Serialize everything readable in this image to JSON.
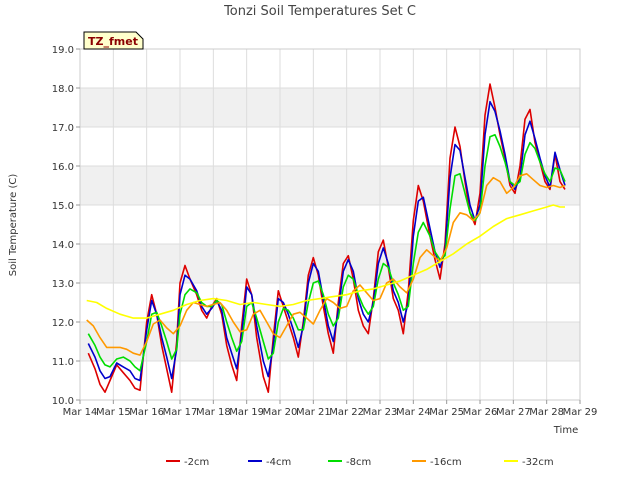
{
  "chart_data": {
    "type": "line",
    "title": "Tonzi Soil Temperatures Set C",
    "xlabel": "Time",
    "ylabel": "Soil Temperature (C)",
    "badge": "TZ_fmet",
    "xlim": [
      14,
      29
    ],
    "ylim": [
      10.0,
      19.0
    ],
    "x_ticks": [
      14,
      15,
      16,
      17,
      18,
      19,
      20,
      21,
      22,
      23,
      24,
      25,
      26,
      27,
      28,
      29
    ],
    "x_tick_labels": [
      "Mar 14",
      "Mar 15",
      "Mar 16",
      "Mar 17",
      "Mar 18",
      "Mar 19",
      "Mar 20",
      "Mar 21",
      "Mar 22",
      "Mar 23",
      "Mar 24",
      "Mar 25",
      "Mar 26",
      "Mar 27",
      "Mar 28",
      "Mar 29"
    ],
    "y_ticks": [
      10.0,
      11.0,
      12.0,
      13.0,
      14.0,
      15.0,
      16.0,
      17.0,
      18.0,
      19.0
    ],
    "y_tick_labels": [
      "10.0",
      "11.0",
      "12.0",
      "13.0",
      "14.0",
      "15.0",
      "16.0",
      "17.0",
      "18.0",
      "19.0"
    ],
    "legend_position": "bottom",
    "series": [
      {
        "name": "-2cm",
        "color": "#dd0000",
        "x": [
          14.25,
          14.45,
          14.6,
          14.75,
          14.9,
          15.1,
          15.3,
          15.5,
          15.65,
          15.8,
          16.0,
          16.15,
          16.3,
          16.45,
          16.6,
          16.75,
          16.9,
          17.0,
          17.15,
          17.3,
          17.5,
          17.65,
          17.8,
          17.95,
          18.1,
          18.25,
          18.4,
          18.55,
          18.7,
          18.85,
          19.0,
          19.15,
          19.3,
          19.5,
          19.65,
          19.8,
          19.95,
          20.1,
          20.25,
          20.4,
          20.55,
          20.7,
          20.85,
          21.0,
          21.15,
          21.3,
          21.45,
          21.6,
          21.75,
          21.9,
          22.05,
          22.2,
          22.35,
          22.5,
          22.65,
          22.8,
          22.95,
          23.1,
          23.25,
          23.4,
          23.55,
          23.7,
          23.85,
          24.0,
          24.15,
          24.3,
          24.5,
          24.65,
          24.8,
          24.95,
          25.1,
          25.25,
          25.4,
          25.55,
          25.7,
          25.85,
          26.0,
          26.15,
          26.3,
          26.45,
          26.6,
          26.75,
          26.9,
          27.05,
          27.2,
          27.35,
          27.5,
          27.65,
          27.8,
          27.95,
          28.1,
          28.25
        ],
        "y": [
          11.2,
          10.8,
          10.4,
          10.2,
          10.5,
          10.9,
          10.7,
          10.5,
          10.3,
          10.25,
          12.0,
          12.7,
          12.2,
          11.4,
          10.8,
          10.2,
          11.5,
          13.0,
          13.45,
          13.1,
          12.7,
          12.3,
          12.1,
          12.4,
          12.6,
          12.2,
          11.4,
          10.9,
          10.5,
          11.9,
          13.1,
          12.7,
          11.6,
          10.6,
          10.2,
          11.6,
          12.8,
          12.4,
          12.0,
          11.6,
          11.1,
          12.0,
          13.2,
          13.65,
          13.2,
          12.4,
          11.7,
          11.2,
          12.5,
          13.5,
          13.7,
          13.1,
          12.3,
          11.9,
          11.7,
          12.6,
          13.8,
          14.1,
          13.4,
          12.6,
          12.3,
          11.7,
          12.8,
          14.6,
          15.5,
          15.1,
          14.2,
          13.6,
          13.1,
          14.0,
          16.2,
          17.0,
          16.5,
          15.6,
          14.8,
          14.5,
          15.3,
          17.3,
          18.1,
          17.5,
          16.8,
          16.2,
          15.5,
          15.3,
          16.0,
          17.2,
          17.45,
          16.6,
          16.1,
          15.6,
          15.4,
          16.3
        ],
        "x_end": [
          28.4,
          28.55
        ],
        "y_end": [
          15.6,
          15.4
        ]
      },
      {
        "name": "-4cm",
        "color": "#0000cc",
        "x": [
          14.25,
          14.45,
          14.6,
          14.75,
          14.9,
          15.1,
          15.3,
          15.5,
          15.65,
          15.8,
          16.0,
          16.15,
          16.3,
          16.45,
          16.6,
          16.75,
          16.9,
          17.0,
          17.15,
          17.3,
          17.5,
          17.65,
          17.8,
          17.95,
          18.1,
          18.25,
          18.4,
          18.55,
          18.7,
          18.85,
          19.0,
          19.15,
          19.3,
          19.5,
          19.65,
          19.8,
          19.95,
          20.1,
          20.25,
          20.4,
          20.55,
          20.7,
          20.85,
          21.0,
          21.15,
          21.3,
          21.45,
          21.6,
          21.75,
          21.9,
          22.05,
          22.2,
          22.35,
          22.5,
          22.65,
          22.8,
          22.95,
          23.1,
          23.25,
          23.4,
          23.55,
          23.7,
          23.85,
          24.0,
          24.15,
          24.3,
          24.5,
          24.65,
          24.8,
          24.95,
          25.1,
          25.25,
          25.4,
          25.55,
          25.7,
          25.85,
          26.0,
          26.15,
          26.3,
          26.45,
          26.6,
          26.75,
          26.9,
          27.05,
          27.2,
          27.35,
          27.5,
          27.65,
          27.8,
          27.95,
          28.1,
          28.25,
          28.4,
          28.55
        ],
        "y": [
          11.45,
          11.1,
          10.75,
          10.55,
          10.6,
          10.95,
          10.85,
          10.75,
          10.55,
          10.5,
          11.8,
          12.55,
          12.2,
          11.6,
          11.1,
          10.55,
          11.3,
          12.7,
          13.2,
          13.1,
          12.8,
          12.4,
          12.2,
          12.35,
          12.55,
          12.3,
          11.6,
          11.2,
          10.8,
          11.7,
          12.9,
          12.7,
          11.9,
          11.0,
          10.6,
          11.4,
          12.6,
          12.5,
          12.2,
          11.8,
          11.35,
          11.9,
          13.0,
          13.5,
          13.3,
          12.6,
          11.9,
          11.5,
          12.3,
          13.3,
          13.6,
          13.3,
          12.6,
          12.2,
          12.0,
          12.5,
          13.5,
          13.9,
          13.5,
          12.8,
          12.5,
          12.0,
          12.5,
          14.2,
          15.1,
          15.2,
          14.4,
          13.8,
          13.4,
          13.8,
          15.7,
          16.55,
          16.4,
          15.7,
          15.0,
          14.6,
          15.0,
          16.8,
          17.65,
          17.4,
          16.9,
          16.3,
          15.6,
          15.4,
          15.7,
          16.8,
          17.15,
          16.7,
          16.2,
          15.75,
          15.45,
          16.35,
          15.9,
          15.5
        ]
      },
      {
        "name": "-8cm",
        "color": "#00dd00",
        "x": [
          14.25,
          14.45,
          14.6,
          14.75,
          14.9,
          15.1,
          15.3,
          15.5,
          15.65,
          15.8,
          16.0,
          16.15,
          16.3,
          16.45,
          16.6,
          16.75,
          16.9,
          17.0,
          17.15,
          17.3,
          17.5,
          17.65,
          17.8,
          17.95,
          18.1,
          18.25,
          18.4,
          18.55,
          18.7,
          18.85,
          19.0,
          19.15,
          19.3,
          19.5,
          19.65,
          19.8,
          19.95,
          20.1,
          20.25,
          20.4,
          20.55,
          20.7,
          20.85,
          21.0,
          21.15,
          21.3,
          21.45,
          21.6,
          21.75,
          21.9,
          22.05,
          22.2,
          22.35,
          22.5,
          22.65,
          22.8,
          22.95,
          23.1,
          23.25,
          23.4,
          23.55,
          23.7,
          23.85,
          24.0,
          24.15,
          24.3,
          24.5,
          24.65,
          24.8,
          24.95,
          25.1,
          25.25,
          25.4,
          25.55,
          25.7,
          25.85,
          26.0,
          26.15,
          26.3,
          26.45,
          26.6,
          26.75,
          26.9,
          27.05,
          27.2,
          27.35,
          27.5,
          27.65,
          27.8,
          27.95,
          28.1,
          28.25,
          28.4,
          28.55
        ],
        "y": [
          11.7,
          11.4,
          11.1,
          10.9,
          10.85,
          11.05,
          11.1,
          11.0,
          10.85,
          10.75,
          11.5,
          12.2,
          12.25,
          11.9,
          11.5,
          11.05,
          11.3,
          12.2,
          12.7,
          12.85,
          12.75,
          12.5,
          12.4,
          12.4,
          12.55,
          12.45,
          12.0,
          11.6,
          11.25,
          11.5,
          12.4,
          12.5,
          12.1,
          11.5,
          11.05,
          11.2,
          12.0,
          12.35,
          12.3,
          12.1,
          11.8,
          11.8,
          12.5,
          13.0,
          13.05,
          12.7,
          12.2,
          11.9,
          12.1,
          12.9,
          13.2,
          13.1,
          12.7,
          12.4,
          12.2,
          12.4,
          13.1,
          13.5,
          13.4,
          13.0,
          12.7,
          12.3,
          12.4,
          13.5,
          14.3,
          14.55,
          14.2,
          13.8,
          13.6,
          13.7,
          14.9,
          15.75,
          15.8,
          15.3,
          14.8,
          14.6,
          14.8,
          16.0,
          16.75,
          16.8,
          16.5,
          16.1,
          15.6,
          15.5,
          15.6,
          16.3,
          16.6,
          16.45,
          16.1,
          15.8,
          15.6,
          15.95,
          15.9,
          15.6
        ]
      },
      {
        "name": "-16cm",
        "color": "#ff9900",
        "x": [
          14.2,
          14.4,
          14.6,
          14.8,
          15.0,
          15.2,
          15.4,
          15.6,
          15.8,
          16.0,
          16.2,
          16.4,
          16.6,
          16.8,
          17.0,
          17.2,
          17.4,
          17.6,
          17.8,
          18.0,
          18.2,
          18.4,
          18.6,
          18.8,
          19.0,
          19.2,
          19.4,
          19.6,
          19.8,
          20.0,
          20.2,
          20.4,
          20.6,
          20.8,
          21.0,
          21.2,
          21.4,
          21.6,
          21.8,
          22.0,
          22.2,
          22.4,
          22.6,
          22.8,
          23.0,
          23.2,
          23.4,
          23.6,
          23.8,
          24.0,
          24.2,
          24.4,
          24.6,
          24.8,
          25.0,
          25.2,
          25.4,
          25.6,
          25.8,
          26.0,
          26.2,
          26.4,
          26.6,
          26.8,
          27.0,
          27.2,
          27.4,
          27.6,
          27.8,
          28.0,
          28.2,
          28.4,
          28.55
        ],
        "y": [
          12.05,
          11.9,
          11.6,
          11.35,
          11.35,
          11.35,
          11.3,
          11.2,
          11.15,
          11.5,
          11.95,
          12.05,
          11.85,
          11.7,
          11.9,
          12.3,
          12.5,
          12.45,
          12.4,
          12.45,
          12.5,
          12.3,
          12.0,
          11.75,
          11.8,
          12.2,
          12.3,
          12.0,
          11.7,
          11.6,
          11.9,
          12.2,
          12.25,
          12.1,
          11.95,
          12.3,
          12.6,
          12.5,
          12.35,
          12.4,
          12.8,
          12.95,
          12.75,
          12.55,
          12.6,
          13.0,
          13.1,
          12.9,
          12.75,
          13.1,
          13.65,
          13.85,
          13.7,
          13.55,
          13.9,
          14.55,
          14.8,
          14.75,
          14.6,
          14.8,
          15.5,
          15.7,
          15.6,
          15.3,
          15.45,
          15.75,
          15.8,
          15.65,
          15.5,
          15.45,
          15.5,
          15.45,
          15.5
        ]
      },
      {
        "name": "-32cm",
        "color": "#ffff00",
        "x": [
          14.2,
          14.5,
          14.8,
          15.2,
          15.6,
          16.0,
          16.4,
          16.8,
          17.2,
          17.6,
          18.0,
          18.4,
          18.8,
          19.2,
          19.6,
          20.0,
          20.4,
          20.8,
          21.2,
          21.6,
          22.0,
          22.4,
          22.8,
          23.2,
          23.6,
          24.0,
          24.4,
          24.8,
          25.2,
          25.6,
          26.0,
          26.4,
          26.8,
          27.2,
          27.6,
          28.0,
          28.2,
          28.4,
          28.55
        ],
        "y": [
          12.55,
          12.5,
          12.35,
          12.2,
          12.1,
          12.1,
          12.2,
          12.3,
          12.45,
          12.55,
          12.6,
          12.55,
          12.45,
          12.5,
          12.45,
          12.4,
          12.45,
          12.55,
          12.6,
          12.65,
          12.7,
          12.8,
          12.85,
          12.95,
          13.05,
          13.2,
          13.35,
          13.55,
          13.75,
          14.0,
          14.2,
          14.45,
          14.65,
          14.75,
          14.85,
          14.95,
          15.0,
          14.95,
          14.95
        ]
      }
    ]
  }
}
